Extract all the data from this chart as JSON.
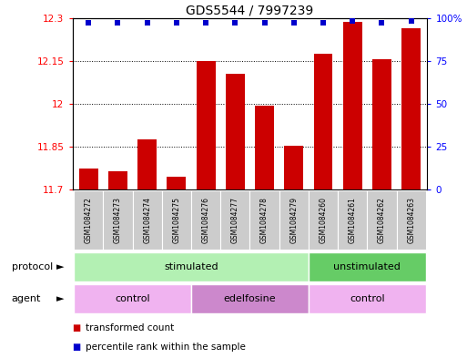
{
  "title": "GDS5544 / 7997239",
  "samples": [
    "GSM1084272",
    "GSM1084273",
    "GSM1084274",
    "GSM1084275",
    "GSM1084276",
    "GSM1084277",
    "GSM1084278",
    "GSM1084279",
    "GSM1084260",
    "GSM1084261",
    "GSM1084262",
    "GSM1084263"
  ],
  "bar_values": [
    11.775,
    11.765,
    11.875,
    11.745,
    12.15,
    12.105,
    11.995,
    11.855,
    12.175,
    12.285,
    12.155,
    12.265
  ],
  "percentile_values": [
    97,
    97,
    97,
    97,
    97,
    97,
    97,
    97,
    97,
    98,
    97,
    98
  ],
  "bar_color": "#cc0000",
  "dot_color": "#0000cc",
  "ylim_left": [
    11.7,
    12.3
  ],
  "ylim_right": [
    0,
    100
  ],
  "yticks_left": [
    11.7,
    11.85,
    12.0,
    12.15,
    12.3
  ],
  "yticks_right": [
    0,
    25,
    50,
    75,
    100
  ],
  "ytick_labels_left": [
    "11.7",
    "11.85",
    "12",
    "12.15",
    "12.3"
  ],
  "ytick_labels_right": [
    "0",
    "25",
    "50",
    "75",
    "100%"
  ],
  "grid_values": [
    11.85,
    12.0,
    12.15
  ],
  "protocol_groups": [
    {
      "label": "stimulated",
      "start": 0,
      "end": 7,
      "color": "#b3f0b3"
    },
    {
      "label": "unstimulated",
      "start": 8,
      "end": 11,
      "color": "#66cc66"
    }
  ],
  "agent_groups": [
    {
      "label": "control",
      "start": 0,
      "end": 3,
      "color": "#f0b3f0"
    },
    {
      "label": "edelfosine",
      "start": 4,
      "end": 7,
      "color": "#cc88cc"
    },
    {
      "label": "control",
      "start": 8,
      "end": 11,
      "color": "#f0b3f0"
    }
  ],
  "legend_items": [
    {
      "label": "transformed count",
      "color": "#cc0000"
    },
    {
      "label": "percentile rank within the sample",
      "color": "#0000cc"
    }
  ],
  "bar_width": 0.65,
  "protocol_label": "protocol",
  "agent_label": "agent",
  "title_fontsize": 10,
  "tick_fontsize": 7.5,
  "sample_fontsize": 5.5,
  "row_fontsize": 8,
  "legend_fontsize": 7.5,
  "xlim": [
    -0.55,
    11.55
  ]
}
